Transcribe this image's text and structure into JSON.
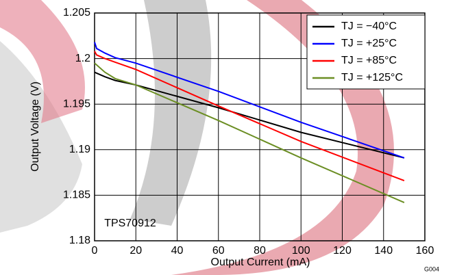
{
  "chart_data": {
    "type": "line",
    "x_label": "Output Current (mA)",
    "y_label": "Output Voltage (V)",
    "annotation": "TPS70912",
    "figure_id": "G004",
    "x": [
      0,
      1,
      5,
      10,
      20,
      60,
      100,
      150
    ],
    "series": [
      {
        "name": "TJ = −40°C",
        "color": "#000000",
        "values": [
          1.1985,
          1.1984,
          1.198,
          1.1976,
          1.1971,
          1.1946,
          1.1919,
          1.1891
        ]
      },
      {
        "name": "TJ = +25°C",
        "color": "#0000ff",
        "values": [
          1.2018,
          1.2011,
          1.2006,
          1.2001,
          1.1995,
          1.1964,
          1.193,
          1.1891
        ]
      },
      {
        "name": "TJ = +85°C",
        "color": "#ff0000",
        "values": [
          1.2008,
          1.2004,
          1.2,
          1.1996,
          1.1988,
          1.1948,
          1.1909,
          1.1866
        ]
      },
      {
        "name": "TJ = +125°C",
        "color": "#6b8e23",
        "values": [
          1.1995,
          1.1993,
          1.1985,
          1.1978,
          1.1971,
          1.1932,
          1.1891,
          1.1842
        ]
      }
    ],
    "xlim": [
      0,
      160
    ],
    "xticks": [
      0,
      20,
      40,
      60,
      80,
      100,
      120,
      140,
      160
    ],
    "ylim": [
      1.18,
      1.205
    ],
    "yticks": [
      1.18,
      1.185,
      1.19,
      1.195,
      1.2,
      1.205
    ],
    "grid": true,
    "legend": "upper right"
  }
}
